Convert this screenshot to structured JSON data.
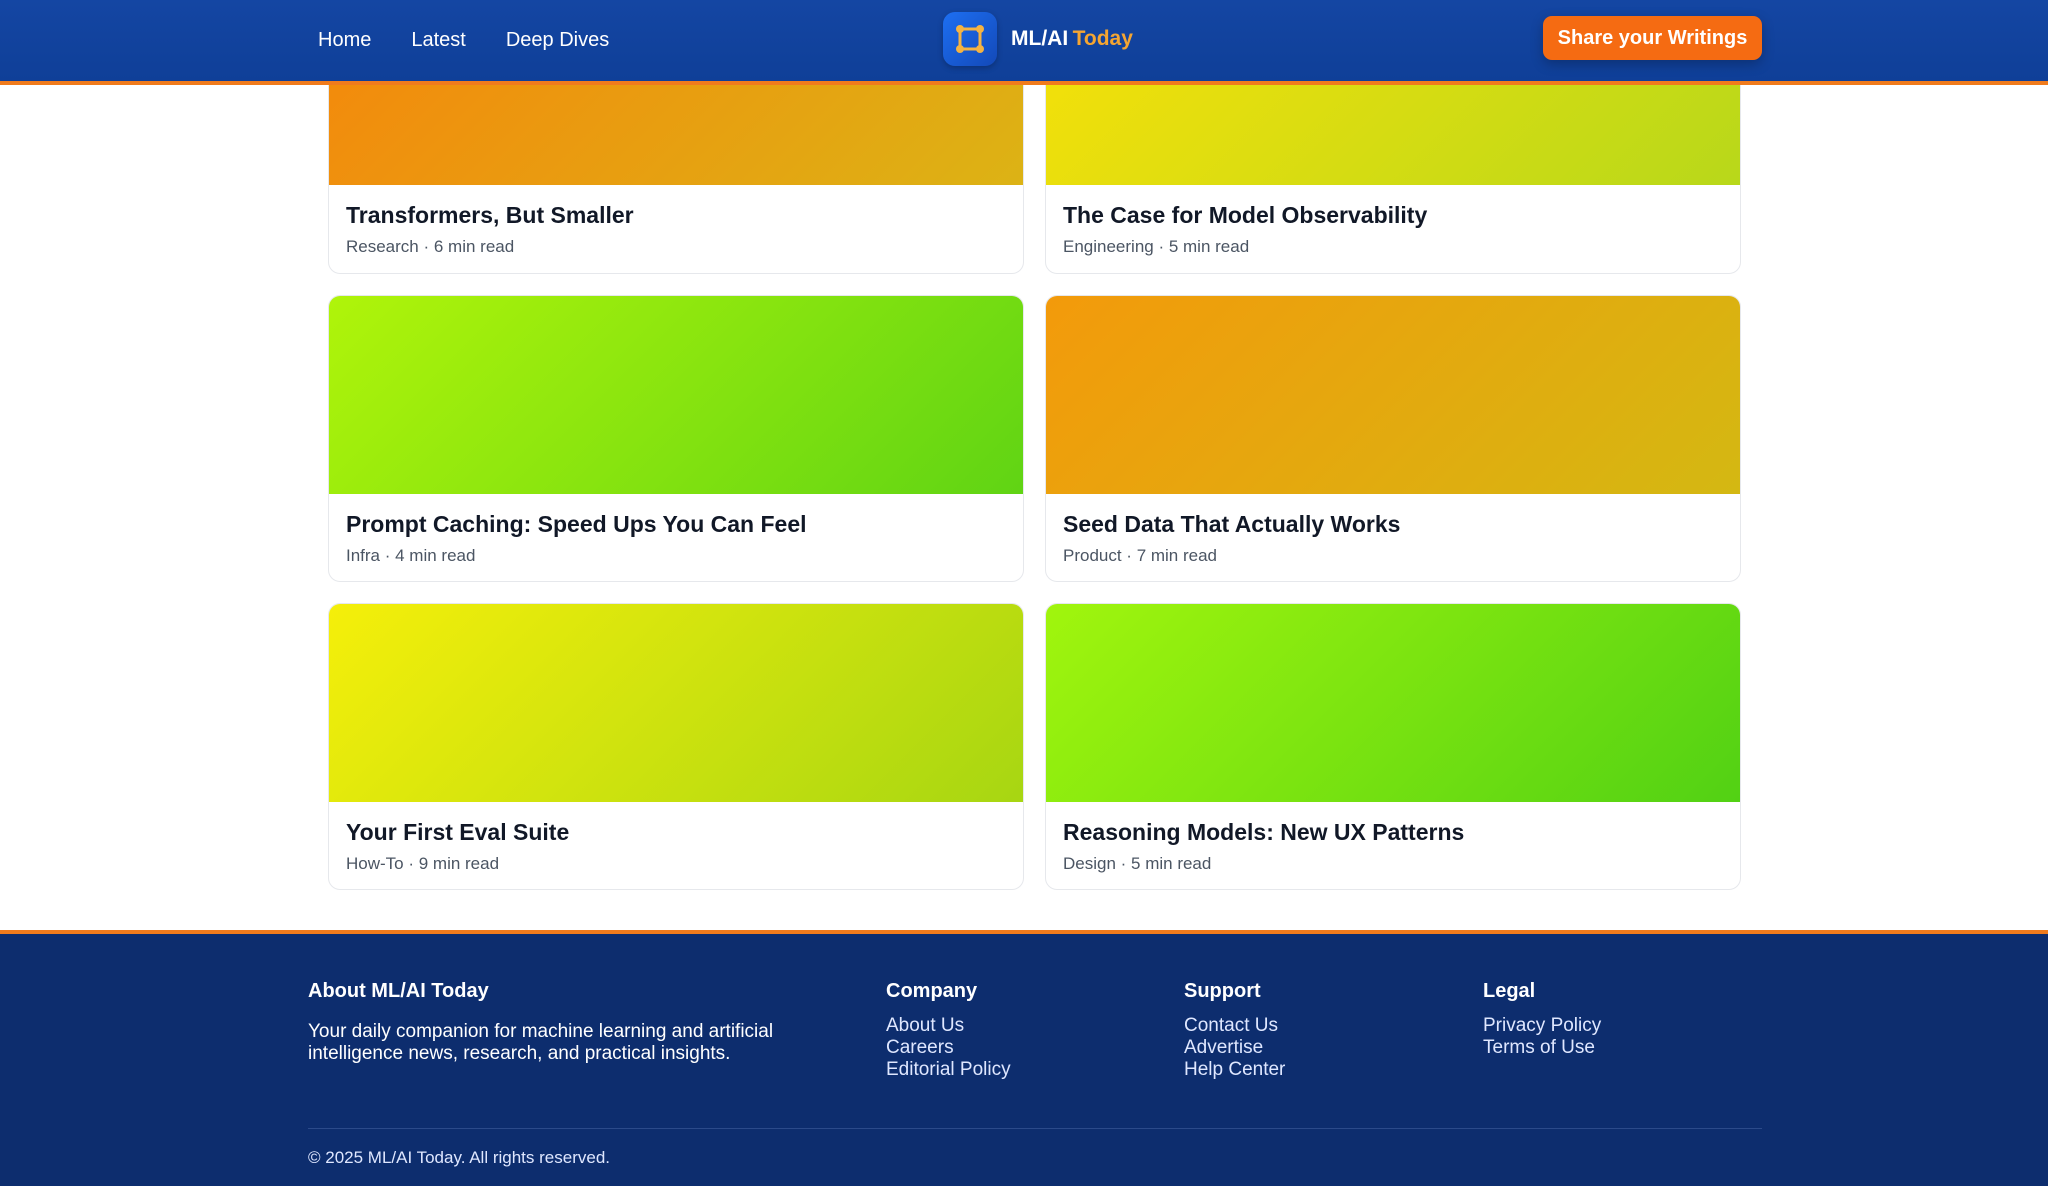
{
  "header": {
    "nav": [
      "Home",
      "Latest",
      "Deep Dives"
    ],
    "brand_name": "ML/AI",
    "brand_accent": "Today",
    "cta": "Share your Writings"
  },
  "articles": [
    {
      "title": "Transformers, But Smaller",
      "meta": "Research · 6 min read"
    },
    {
      "title": "The Case for Model Observability",
      "meta": "Engineering · 5 min read"
    },
    {
      "title": "Prompt Caching: Speed Ups You Can Feel",
      "meta": "Infra · 4 min read"
    },
    {
      "title": "Seed Data That Actually Works",
      "meta": "Product · 7 min read"
    },
    {
      "title": "Your First Eval Suite",
      "meta": "How-To · 9 min read"
    },
    {
      "title": "Reasoning Models: New UX Patterns",
      "meta": "Design · 5 min read"
    }
  ],
  "footer": {
    "about_title": "About ML/AI Today",
    "about_text": "Your daily companion for machine learning and artificial intelligence news, research, and practical insights.",
    "company_title": "Company",
    "company_links": [
      "About Us",
      "Careers",
      "Editorial Policy"
    ],
    "support_title": "Support",
    "support_links": [
      "Contact Us",
      "Advertise",
      "Help Center"
    ],
    "legal_title": "Legal",
    "legal_links": [
      "Privacy Policy",
      "Terms of Use"
    ],
    "copyright": "© 2025 ML/AI Today. All rights reserved."
  },
  "colors": {
    "header_bg": "#1446a3",
    "accent_orange": "#f07b1c",
    "cta_bg": "#f56b12",
    "footer_bg": "#0d2d6e"
  }
}
